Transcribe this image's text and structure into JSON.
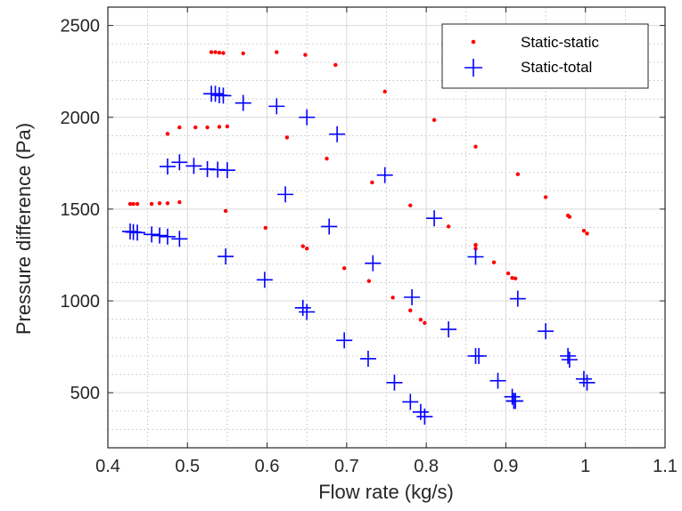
{
  "chart_data": {
    "type": "scatter",
    "xlabel": "Flow rate (kg/s)",
    "ylabel": "Pressure difference (Pa)",
    "xlim": [
      0.4,
      1.1
    ],
    "ylim": [
      200,
      2600
    ],
    "xticks": [
      "0.4",
      "0.5",
      "0.6",
      "0.7",
      "0.8",
      "0.9",
      "1",
      "1.1"
    ],
    "yticks": [
      "500",
      "1000",
      "1500",
      "2000",
      "2500"
    ],
    "grid": true,
    "minor_grid": true,
    "legend_position": "top-right",
    "series": [
      {
        "name": "Static-static",
        "marker": "dot",
        "color": "#ff0000",
        "points": [
          [
            0.53,
            2355
          ],
          [
            0.535,
            2355
          ],
          [
            0.54,
            2352
          ],
          [
            0.545,
            2350
          ],
          [
            0.57,
            2348
          ],
          [
            0.612,
            2355
          ],
          [
            0.648,
            2340
          ],
          [
            0.686,
            2285
          ],
          [
            0.475,
            1910
          ],
          [
            0.49,
            1945
          ],
          [
            0.51,
            1945
          ],
          [
            0.525,
            1945
          ],
          [
            0.54,
            1948
          ],
          [
            0.55,
            1950
          ],
          [
            0.625,
            1890
          ],
          [
            0.675,
            1775
          ],
          [
            0.748,
            2140
          ],
          [
            0.81,
            1985
          ],
          [
            0.862,
            1840
          ],
          [
            0.915,
            1690
          ],
          [
            0.95,
            1565
          ],
          [
            0.978,
            1465
          ],
          [
            0.98,
            1458
          ],
          [
            0.998,
            1382
          ],
          [
            1.002,
            1367
          ],
          [
            0.428,
            1528
          ],
          [
            0.432,
            1528
          ],
          [
            0.437,
            1528
          ],
          [
            0.455,
            1528
          ],
          [
            0.465,
            1532
          ],
          [
            0.475,
            1532
          ],
          [
            0.49,
            1538
          ],
          [
            0.548,
            1490
          ],
          [
            0.598,
            1398
          ],
          [
            0.645,
            1298
          ],
          [
            0.65,
            1285
          ],
          [
            0.697,
            1178
          ],
          [
            0.728,
            1108
          ],
          [
            0.732,
            1645
          ],
          [
            0.758,
            1018
          ],
          [
            0.78,
            948
          ],
          [
            0.78,
            1520
          ],
          [
            0.793,
            898
          ],
          [
            0.798,
            880
          ],
          [
            0.828,
            1405
          ],
          [
            0.862,
            1305
          ],
          [
            0.862,
            1285
          ],
          [
            0.885,
            1210
          ],
          [
            0.903,
            1150
          ],
          [
            0.908,
            1125
          ],
          [
            0.912,
            1122
          ]
        ]
      },
      {
        "name": "Static-total",
        "marker": "plus",
        "color": "#0000ff",
        "points": [
          [
            0.53,
            2128
          ],
          [
            0.535,
            2128
          ],
          [
            0.54,
            2120
          ],
          [
            0.545,
            2118
          ],
          [
            0.57,
            2078
          ],
          [
            0.612,
            2060
          ],
          [
            0.65,
            2000
          ],
          [
            0.688,
            1908
          ],
          [
            0.475,
            1732
          ],
          [
            0.49,
            1755
          ],
          [
            0.508,
            1735
          ],
          [
            0.525,
            1718
          ],
          [
            0.538,
            1715
          ],
          [
            0.55,
            1712
          ],
          [
            0.623,
            1580
          ],
          [
            0.678,
            1405
          ],
          [
            0.748,
            1685
          ],
          [
            0.428,
            1378
          ],
          [
            0.432,
            1375
          ],
          [
            0.437,
            1372
          ],
          [
            0.455,
            1362
          ],
          [
            0.465,
            1356
          ],
          [
            0.475,
            1350
          ],
          [
            0.49,
            1338
          ],
          [
            0.548,
            1242
          ],
          [
            0.597,
            1115
          ],
          [
            0.645,
            962
          ],
          [
            0.65,
            940
          ],
          [
            0.697,
            785
          ],
          [
            0.727,
            685
          ],
          [
            0.733,
            1205
          ],
          [
            0.76,
            555
          ],
          [
            0.78,
            450
          ],
          [
            0.782,
            1020
          ],
          [
            0.793,
            395
          ],
          [
            0.798,
            370
          ],
          [
            0.81,
            1450
          ],
          [
            0.828,
            845
          ],
          [
            0.862,
            1240
          ],
          [
            0.862,
            700
          ],
          [
            0.866,
            700
          ],
          [
            0.89,
            565
          ],
          [
            0.908,
            478
          ],
          [
            0.91,
            455
          ],
          [
            0.912,
            455
          ],
          [
            0.915,
            1012
          ],
          [
            0.95,
            835
          ],
          [
            0.978,
            700
          ],
          [
            0.98,
            680
          ],
          [
            0.998,
            575
          ],
          [
            1.002,
            555
          ]
        ]
      }
    ]
  }
}
